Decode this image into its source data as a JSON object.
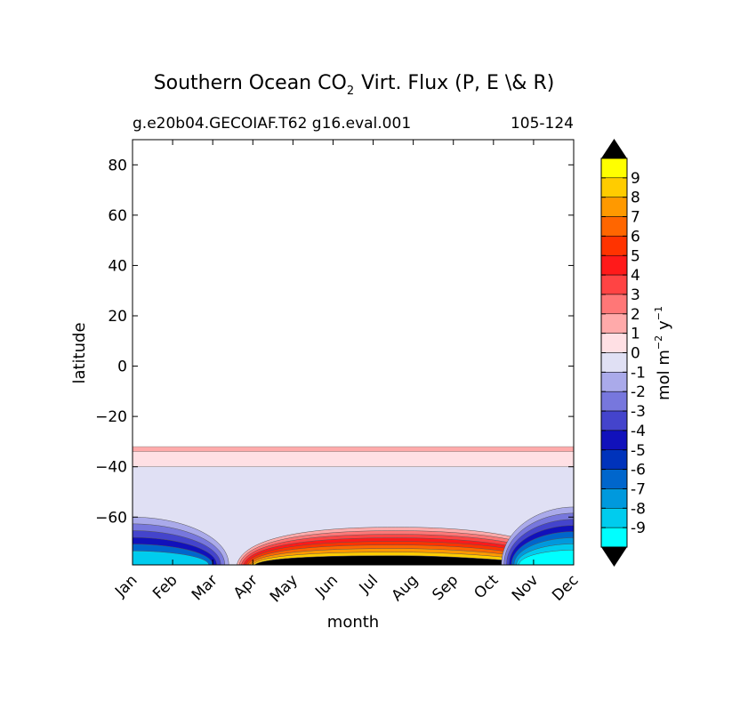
{
  "chart_data": {
    "type": "heatmap",
    "title_main": "Southern Ocean CO",
    "title_sub": "2",
    "title_rest": "Virt. Flux (P, E \\& R)",
    "subtitle_left": "g.e20b04.GECOIAF.T62 g16.eval.001",
    "subtitle_right": "105-124",
    "xlabel": "month",
    "ylabel": "latitude",
    "x_categories": [
      "Jan",
      "Feb",
      "Mar",
      "Apr",
      "May",
      "Jun",
      "Jul",
      "Aug",
      "Sep",
      "Oct",
      "Nov",
      "Dec"
    ],
    "ylim": [
      -79,
      90
    ],
    "y_ticks": [
      80,
      60,
      40,
      20,
      0,
      -20,
      -40,
      -60
    ],
    "y_tick_labels": [
      "80",
      "60",
      "40",
      "20",
      "0",
      "−20",
      "−40",
      "−60"
    ],
    "colorbar": {
      "label_main": "mol m",
      "label_exp1": "−2",
      "label_mid": "y",
      "label_exp2": "−1",
      "tick_labels": [
        "9",
        "8",
        "7",
        "6",
        "5",
        "4",
        "3",
        "2",
        "1",
        "0",
        "-1",
        "-2",
        "-3",
        "-4",
        "-5",
        "-6",
        "-7",
        "-8",
        "-9"
      ],
      "levels": [
        {
          "lo": 9.5,
          "hi": 10.5,
          "color": "#ffff00"
        },
        {
          "lo": 8.5,
          "hi": 9.5,
          "color": "#ffcc00"
        },
        {
          "lo": 7.5,
          "hi": 8.5,
          "color": "#ff9900"
        },
        {
          "lo": 6.5,
          "hi": 7.5,
          "color": "#ff6600"
        },
        {
          "lo": 5.5,
          "hi": 6.5,
          "color": "#ff3300"
        },
        {
          "lo": 4.5,
          "hi": 5.5,
          "color": "#ff1a1a"
        },
        {
          "lo": 3.5,
          "hi": 4.5,
          "color": "#ff4444"
        },
        {
          "lo": 2.5,
          "hi": 3.5,
          "color": "#ff7777"
        },
        {
          "lo": 1.5,
          "hi": 2.5,
          "color": "#ffaaaa"
        },
        {
          "lo": 0.5,
          "hi": 1.5,
          "color": "#ffe0e4"
        },
        {
          "lo": -0.5,
          "hi": 0.5,
          "color": "#e0e0f4"
        },
        {
          "lo": -1.5,
          "hi": -0.5,
          "color": "#aaaaea"
        },
        {
          "lo": -2.5,
          "hi": -1.5,
          "color": "#7777dd"
        },
        {
          "lo": -3.5,
          "hi": -2.5,
          "color": "#4444cc"
        },
        {
          "lo": -4.5,
          "hi": -3.5,
          "color": "#1111bb"
        },
        {
          "lo": -5.5,
          "hi": -4.5,
          "color": "#0033bb"
        },
        {
          "lo": -6.5,
          "hi": -5.5,
          "color": "#0066cc"
        },
        {
          "lo": -7.5,
          "hi": -6.5,
          "color": "#0099dd"
        },
        {
          "lo": -8.5,
          "hi": -7.5,
          "color": "#00ccee"
        },
        {
          "lo": -9.5,
          "hi": -8.5,
          "color": "#00ffff"
        }
      ],
      "extend_max_color": "#000000",
      "extend_min_color": "#000000"
    },
    "bands": [
      {
        "lat_top": -32,
        "lat_bottom": -34,
        "value": 2,
        "color": "#ffaaaa"
      },
      {
        "lat_top": -34,
        "lat_bottom": -40,
        "value": 1,
        "color": "#ffe0e4"
      },
      {
        "lat_top": -40,
        "lat_bottom": -79,
        "value": 0,
        "color": "#e0e0f4"
      }
    ],
    "features": [
      {
        "kind": "southern-winter-maximum",
        "month_from": 2.6,
        "month_to": 10.7,
        "lat_top": -64,
        "lat_bottom": -79,
        "peak_value": 10,
        "colors": [
          "#ffaaaa",
          "#ff7777",
          "#ff4444",
          "#ff1a1a",
          "#ff3300",
          "#ff6600",
          "#ff9900",
          "#ffcc00",
          "#000000"
        ]
      },
      {
        "kind": "austral-summer-minimum",
        "month_from": 0,
        "month_to": 2.4,
        "lat_top": -60,
        "lat_bottom": -79,
        "peak_value": -9,
        "colors": [
          "#aaaaea",
          "#7777dd",
          "#4444cc",
          "#1111bb",
          "#0066cc",
          "#00ccee"
        ]
      },
      {
        "kind": "austral-summer-minimum",
        "month_from": 9.2,
        "month_to": 11,
        "lat_top": -56,
        "lat_bottom": -79,
        "peak_value": -9,
        "colors": [
          "#aaaaea",
          "#7777dd",
          "#4444cc",
          "#1111bb",
          "#0066cc",
          "#0099dd",
          "#00ccee",
          "#00ffff"
        ]
      }
    ]
  }
}
